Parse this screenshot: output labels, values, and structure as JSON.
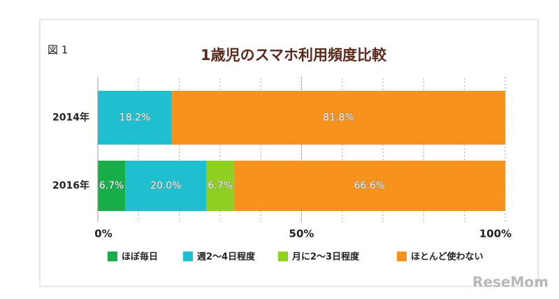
{
  "chart_data": {
    "type": "stacked-barh",
    "label": "図 1",
    "title": "1歳児のスマホ利用頻度比較",
    "categories": [
      "2014年",
      "2016年"
    ],
    "series": [
      {
        "name": "ほぼ毎日",
        "color": "#17ad4a",
        "values": [
          0,
          6.7
        ],
        "value_labels": [
          null,
          "6.7%"
        ]
      },
      {
        "name": "週2〜4日程度",
        "color": "#1fbfcf",
        "values": [
          18.2,
          20.0
        ],
        "value_labels": [
          "18.2%",
          "20.0%"
        ]
      },
      {
        "name": "月に2〜3日程度",
        "color": "#8fd020",
        "values": [
          0,
          6.7
        ],
        "value_labels": [
          null,
          "6.7%"
        ]
      },
      {
        "name": "ほとんど使わない",
        "color": "#f7931d",
        "values": [
          81.8,
          66.6
        ],
        "value_labels": [
          "81.8%",
          "66.6%"
        ]
      }
    ],
    "xlim": [
      0,
      100
    ],
    "xticks": [
      {
        "value": 0,
        "label": "0%"
      },
      {
        "value": 50,
        "label": "50%"
      },
      {
        "value": 100,
        "label": "100%"
      }
    ],
    "minor_xticks": [
      10,
      20,
      30,
      40,
      50,
      60,
      70,
      80,
      90
    ],
    "grid": true,
    "watermark": "ReseMom"
  }
}
